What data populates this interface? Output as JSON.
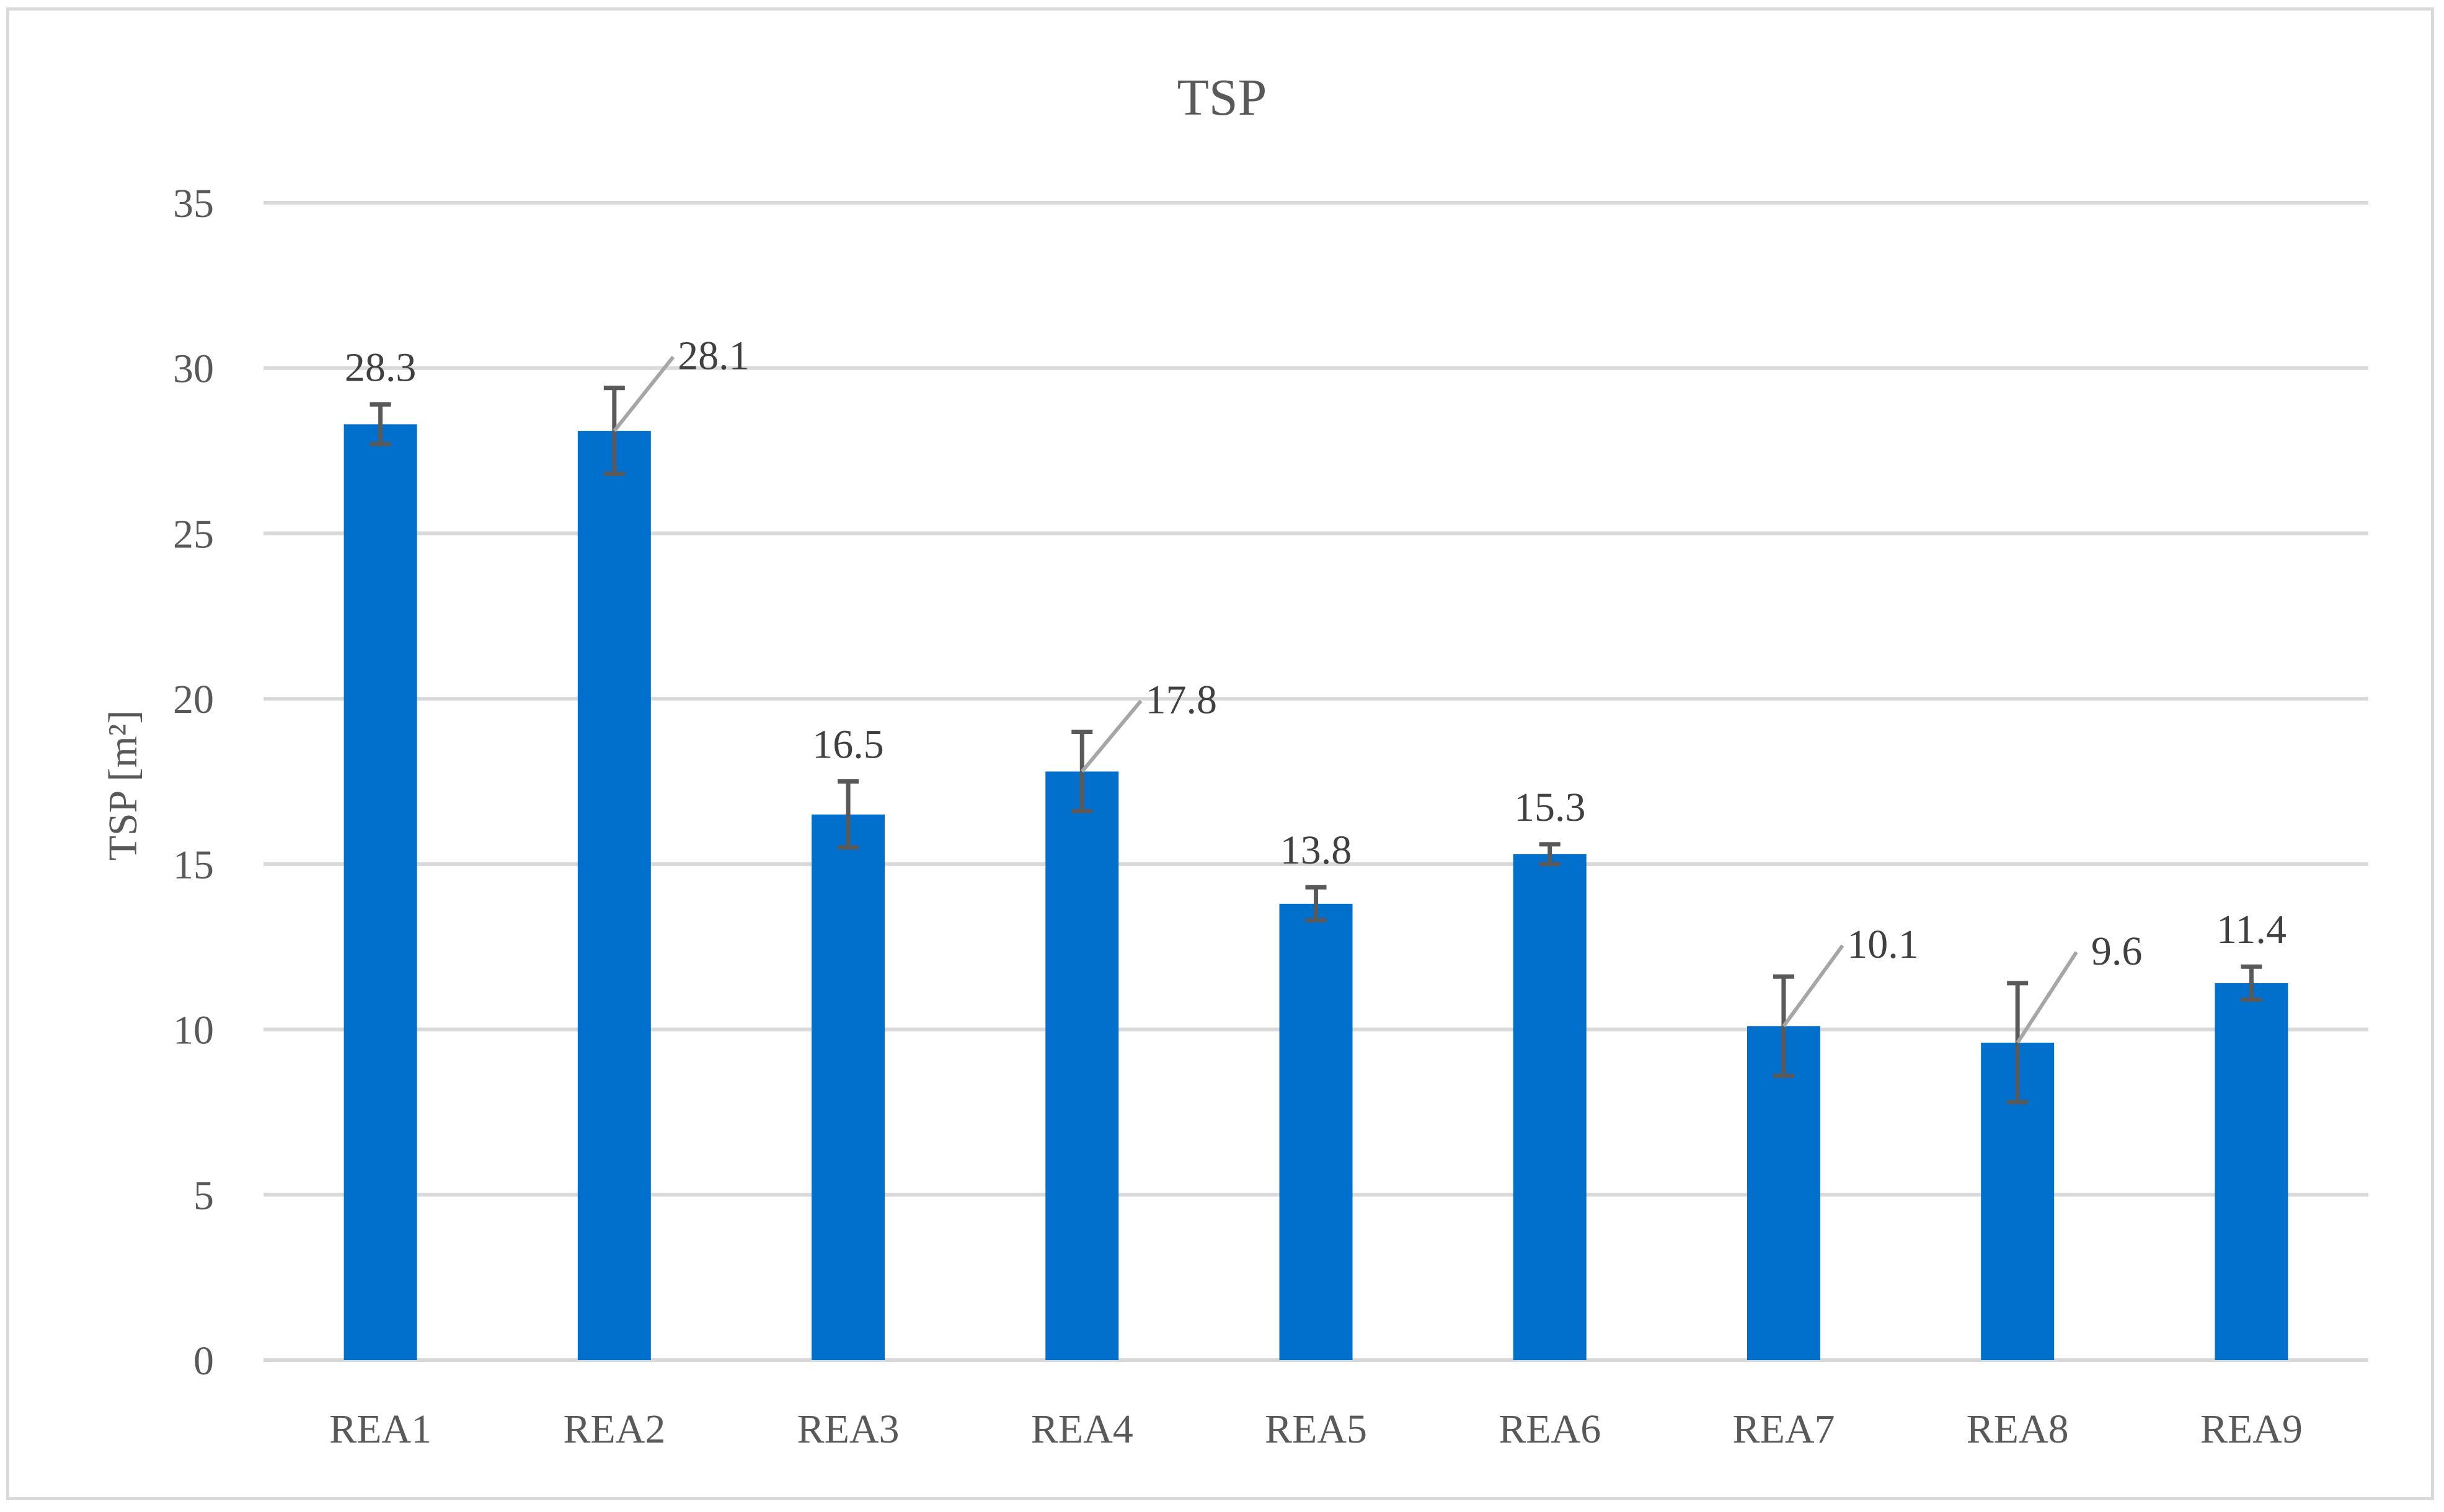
{
  "chart_data": {
    "type": "bar",
    "title": "TSP",
    "ylabel": "TSP [m²]",
    "xlabel": "",
    "ylim": [
      0,
      35
    ],
    "yticks": [
      0,
      5,
      10,
      15,
      20,
      25,
      30,
      35
    ],
    "grid": true,
    "legend": "none",
    "categories": [
      "REA1",
      "REA2",
      "REA3",
      "REA4",
      "REA5",
      "REA6",
      "REA7",
      "REA8",
      "REA9"
    ],
    "values": [
      28.3,
      28.1,
      16.5,
      17.8,
      13.8,
      15.3,
      10.1,
      9.6,
      11.4
    ],
    "data_labels": [
      "28.3",
      "28.1",
      "16.5",
      "17.8",
      "13.8",
      "15.3",
      "10.1",
      "9.6",
      "11.4"
    ],
    "error_low": [
      27.7,
      26.8,
      15.5,
      16.6,
      13.3,
      15.0,
      8.6,
      7.8,
      10.9
    ],
    "error_high": [
      28.9,
      29.4,
      17.5,
      19.0,
      14.3,
      15.6,
      11.6,
      11.4,
      11.9
    ],
    "bar_color": "#0070cc"
  }
}
